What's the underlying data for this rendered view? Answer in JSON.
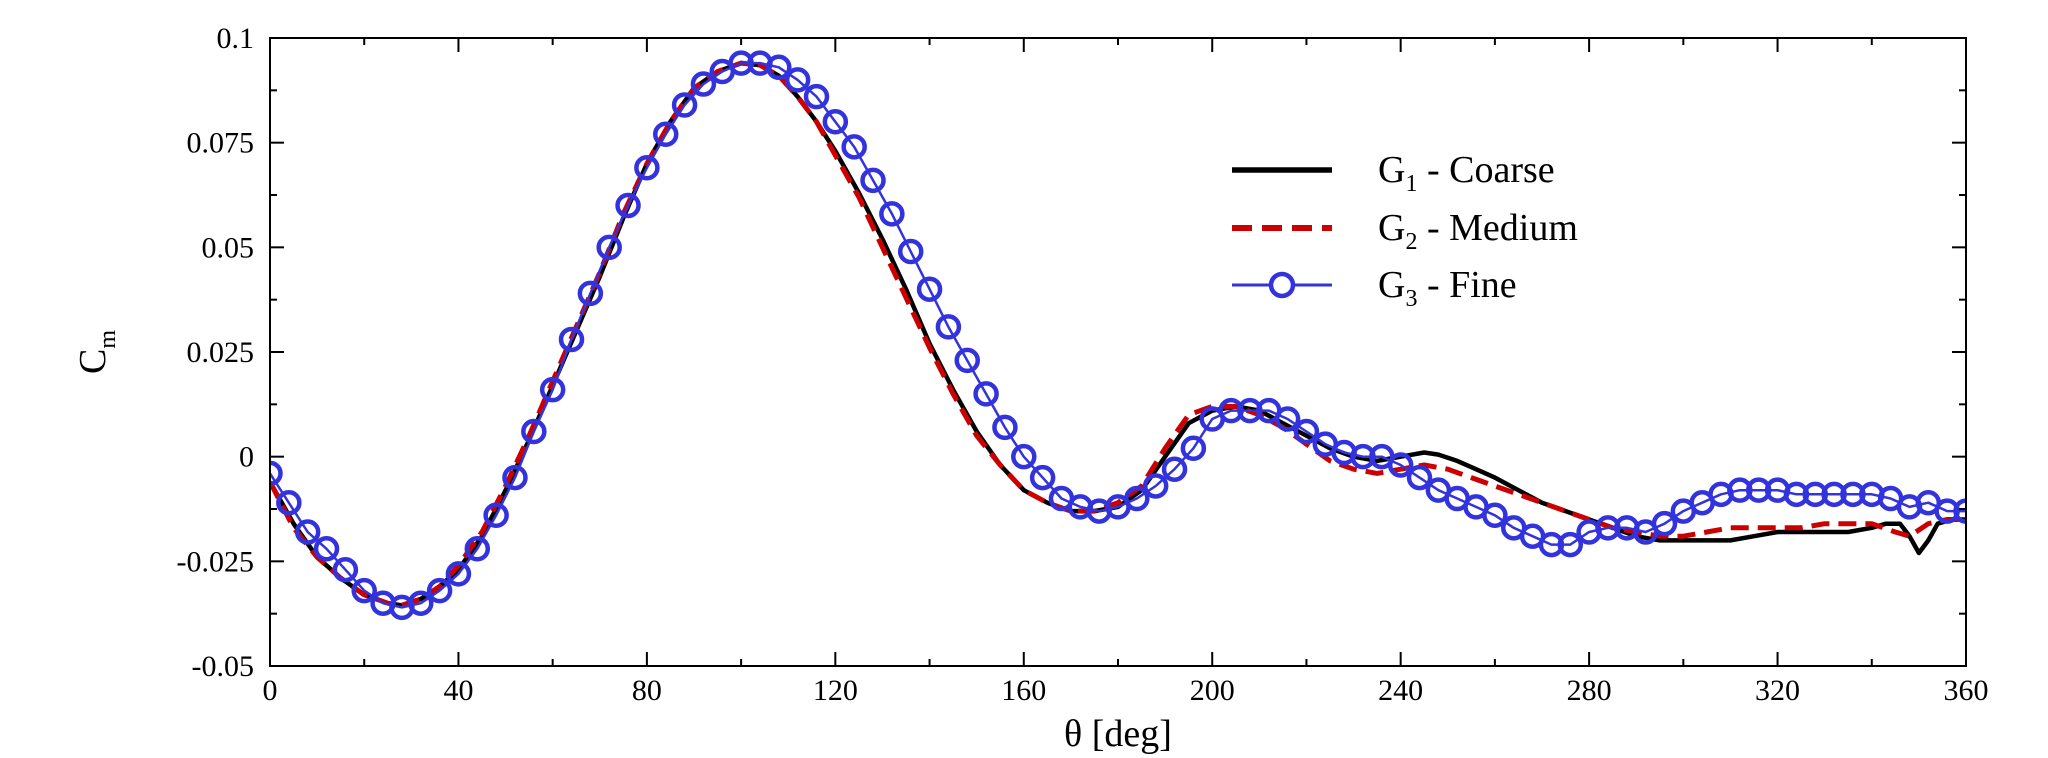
{
  "chart_data": {
    "type": "line",
    "title": "",
    "xlabel": "θ [deg]",
    "ylabel": {
      "main": "C",
      "sub": "m"
    },
    "xlim": [
      0,
      360
    ],
    "ylim": [
      -0.05,
      0.1
    ],
    "xticks": [
      0,
      40,
      80,
      120,
      160,
      200,
      240,
      280,
      320,
      360
    ],
    "xtick_labels": [
      "0",
      "40",
      "80",
      "120",
      "160",
      "200",
      "240",
      "280",
      "320",
      "360"
    ],
    "yticks": [
      -0.05,
      -0.025,
      0,
      0.025,
      0.05,
      0.075,
      0.1
    ],
    "ytick_labels": [
      "-0.05",
      "-0.025",
      "0",
      "0.025",
      "0.05",
      "0.075",
      "0.1"
    ],
    "grid": false,
    "legend_position": "top-right",
    "series": [
      {
        "name": "G1 - Coarse",
        "legend": {
          "main": "G",
          "sub": "1",
          "rest": " - Coarse"
        },
        "color": "#000000",
        "style": "solid",
        "x": [
          0,
          5,
          10,
          15,
          20,
          25,
          28,
          32,
          36,
          40,
          45,
          50,
          55,
          60,
          65,
          70,
          75,
          80,
          85,
          90,
          95,
          100,
          104,
          108,
          112,
          116,
          120,
          125,
          130,
          135,
          140,
          145,
          150,
          155,
          160,
          165,
          170,
          175,
          180,
          185,
          190,
          195,
          200,
          205,
          210,
          215,
          220,
          225,
          230,
          235,
          240,
          245,
          248,
          252,
          256,
          260,
          265,
          270,
          275,
          280,
          285,
          290,
          295,
          300,
          305,
          310,
          315,
          320,
          325,
          330,
          335,
          340,
          343,
          346,
          348,
          350,
          352,
          354,
          357,
          360
        ],
        "y": [
          -0.006,
          -0.016,
          -0.024,
          -0.029,
          -0.033,
          -0.035,
          -0.0355,
          -0.034,
          -0.031,
          -0.027,
          -0.019,
          -0.008,
          0.004,
          0.017,
          0.03,
          0.043,
          0.057,
          0.07,
          0.08,
          0.088,
          0.092,
          0.094,
          0.0935,
          0.091,
          0.086,
          0.08,
          0.073,
          0.063,
          0.052,
          0.04,
          0.027,
          0.016,
          0.006,
          -0.002,
          -0.008,
          -0.011,
          -0.013,
          -0.013,
          -0.012,
          -0.008,
          0.0,
          0.008,
          0.011,
          0.012,
          0.011,
          0.008,
          0.005,
          0.002,
          0.0,
          -0.001,
          0.0,
          0.001,
          0.0005,
          -0.001,
          -0.003,
          -0.005,
          -0.008,
          -0.011,
          -0.013,
          -0.015,
          -0.017,
          -0.019,
          -0.02,
          -0.02,
          -0.02,
          -0.02,
          -0.019,
          -0.018,
          -0.018,
          -0.018,
          -0.018,
          -0.017,
          -0.016,
          -0.016,
          -0.019,
          -0.023,
          -0.02,
          -0.016,
          -0.015,
          -0.015
        ]
      },
      {
        "name": "G2 - Medium",
        "legend": {
          "main": "G",
          "sub": "2",
          "rest": " - Medium"
        },
        "color": "#cc0000",
        "style": "dashed",
        "x": [
          0,
          5,
          10,
          15,
          20,
          25,
          28,
          32,
          36,
          40,
          45,
          50,
          55,
          60,
          65,
          70,
          75,
          80,
          85,
          90,
          95,
          100,
          104,
          108,
          112,
          116,
          120,
          125,
          130,
          135,
          140,
          145,
          150,
          155,
          160,
          165,
          170,
          175,
          180,
          185,
          190,
          195,
          200,
          205,
          210,
          215,
          220,
          225,
          230,
          235,
          240,
          245,
          250,
          255,
          260,
          265,
          270,
          275,
          280,
          285,
          290,
          295,
          300,
          305,
          310,
          315,
          320,
          325,
          330,
          335,
          340,
          345,
          348,
          352,
          356,
          360
        ],
        "y": [
          -0.006,
          -0.017,
          -0.024,
          -0.029,
          -0.033,
          -0.035,
          -0.0355,
          -0.034,
          -0.031,
          -0.026,
          -0.018,
          -0.007,
          0.005,
          0.018,
          0.031,
          0.044,
          0.058,
          0.07,
          0.08,
          0.088,
          0.092,
          0.094,
          0.0935,
          0.091,
          0.086,
          0.08,
          0.072,
          0.062,
          0.05,
          0.038,
          0.026,
          0.015,
          0.005,
          -0.002,
          -0.008,
          -0.011,
          -0.013,
          -0.013,
          -0.011,
          -0.007,
          0.002,
          0.01,
          0.012,
          0.012,
          0.01,
          0.007,
          0.003,
          -0.001,
          -0.003,
          -0.004,
          -0.003,
          -0.002,
          -0.003,
          -0.005,
          -0.007,
          -0.009,
          -0.011,
          -0.013,
          -0.015,
          -0.017,
          -0.018,
          -0.019,
          -0.019,
          -0.018,
          -0.017,
          -0.017,
          -0.017,
          -0.017,
          -0.016,
          -0.016,
          -0.016,
          -0.018,
          -0.019,
          -0.016,
          -0.015,
          -0.015
        ]
      },
      {
        "name": "G3 - Fine",
        "legend": {
          "main": "G",
          "sub": "3",
          "rest": " - Fine"
        },
        "color": "#3333dd",
        "style": "solid-markers",
        "x": [
          0,
          4,
          8,
          12,
          16,
          20,
          24,
          28,
          32,
          36,
          40,
          44,
          48,
          52,
          56,
          60,
          64,
          68,
          72,
          76,
          80,
          84,
          88,
          92,
          96,
          100,
          104,
          108,
          112,
          116,
          120,
          124,
          128,
          132,
          136,
          140,
          144,
          148,
          152,
          156,
          160,
          164,
          168,
          172,
          176,
          180,
          184,
          188,
          192,
          196,
          200,
          204,
          208,
          212,
          216,
          220,
          224,
          228,
          232,
          236,
          240,
          244,
          248,
          252,
          256,
          260,
          264,
          268,
          272,
          276,
          280,
          284,
          288,
          292,
          296,
          300,
          304,
          308,
          312,
          316,
          320,
          324,
          328,
          332,
          336,
          340,
          344,
          348,
          352,
          356,
          360
        ],
        "y": [
          -0.004,
          -0.011,
          -0.018,
          -0.022,
          -0.027,
          -0.032,
          -0.035,
          -0.036,
          -0.035,
          -0.032,
          -0.028,
          -0.022,
          -0.014,
          -0.005,
          0.006,
          0.016,
          0.028,
          0.039,
          0.05,
          0.06,
          0.069,
          0.077,
          0.084,
          0.089,
          0.092,
          0.094,
          0.094,
          0.093,
          0.09,
          0.086,
          0.08,
          0.074,
          0.066,
          0.058,
          0.049,
          0.04,
          0.031,
          0.023,
          0.015,
          0.007,
          0.0,
          -0.005,
          -0.01,
          -0.012,
          -0.013,
          -0.012,
          -0.01,
          -0.007,
          -0.003,
          0.002,
          0.009,
          0.011,
          0.011,
          0.011,
          0.009,
          0.006,
          0.003,
          0.001,
          0.0,
          0.0,
          -0.002,
          -0.005,
          -0.008,
          -0.01,
          -0.012,
          -0.014,
          -0.017,
          -0.019,
          -0.021,
          -0.021,
          -0.018,
          -0.017,
          -0.017,
          -0.018,
          -0.016,
          -0.013,
          -0.011,
          -0.009,
          -0.008,
          -0.008,
          -0.008,
          -0.009,
          -0.009,
          -0.009,
          -0.009,
          -0.009,
          -0.01,
          -0.012,
          -0.011,
          -0.013,
          -0.013
        ]
      }
    ]
  }
}
